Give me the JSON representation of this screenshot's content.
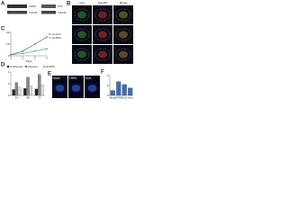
{
  "panel_labels": [
    "A",
    "B",
    "C",
    "D",
    "E",
    "F"
  ],
  "blot_a": {
    "rows": [
      "LRP6",
      "Tubulin"
    ]
  },
  "blot_b": {
    "rows": [
      "Tcf4",
      "Tubulin"
    ]
  },
  "microscopy": {
    "columns": [
      "p24",
      "Nup153",
      "Merge"
    ]
  },
  "images_e": {
    "labels": [
      "Mock",
      "LRP6",
      "Dvl2"
    ]
  },
  "chart_data": [
    {
      "type": "line",
      "xlabel": "Days",
      "x": [
        0,
        2,
        4,
        6
      ],
      "xlim": [
        0,
        6
      ],
      "xticks": [
        0,
        2,
        4,
        6
      ],
      "ylim": [
        0,
        20
      ],
      "yticks": [
        0,
        10,
        20
      ],
      "series": [
        {
          "name": "Control",
          "color": "#2f5fa8",
          "values": [
            1,
            4,
            10,
            16
          ]
        },
        {
          "name": "siLRP6",
          "color": "#3aa345",
          "values": [
            1,
            2,
            4,
            6
          ]
        }
      ]
    },
    {
      "type": "bar",
      "categories": [
        "24",
        "48",
        "72"
      ],
      "ylim": [
        0,
        4
      ],
      "yticks": [
        0,
        2,
        4
      ],
      "series": [
        {
          "name": "Uninfected",
          "color": "#222222",
          "values": [
            1,
            1.2,
            1.1
          ]
        },
        {
          "name": "Infected",
          "color": "#888888",
          "values": [
            2.2,
            3.1,
            3.6
          ]
        },
        {
          "name": "siLRP6",
          "color": "#dddddd",
          "values": [
            1.4,
            1.6,
            1.8
          ]
        }
      ]
    },
    {
      "type": "bar",
      "categories": [
        "Mock",
        "LRP6",
        "Dvl2",
        "Axin"
      ],
      "values": [
        1,
        2.8,
        2.2,
        1.5
      ],
      "color": "#3c6fb5",
      "ylim": [
        0,
        4
      ],
      "yticks": [
        0,
        2,
        4
      ]
    }
  ]
}
